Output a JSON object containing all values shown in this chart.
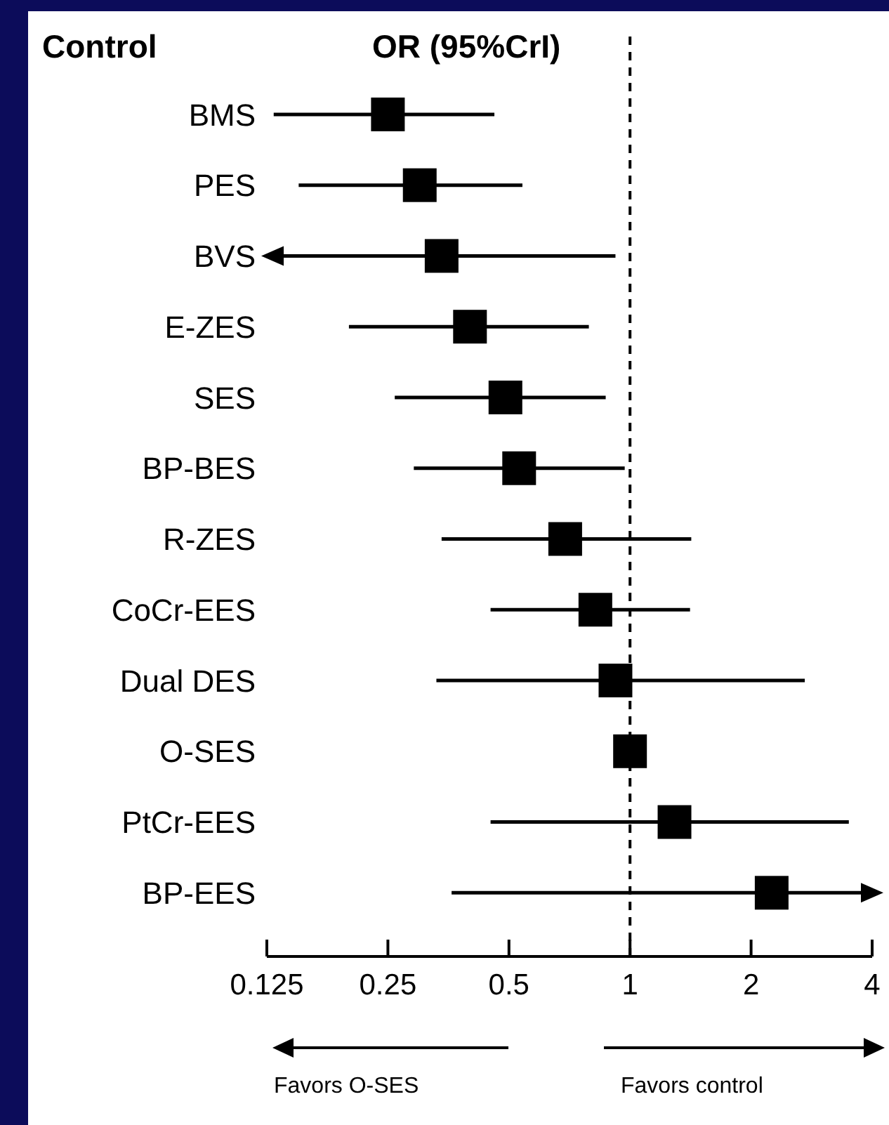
{
  "chart_data": {
    "type": "scatter",
    "title": "OR (95%CrI)",
    "ylabel": "Control",
    "categories": [
      "BMS",
      "PES",
      "BVS",
      "E-ZES",
      "SES",
      "BP-BES",
      "R-ZES",
      "CoCr-EES",
      "Dual DES",
      "O-SES",
      "PtCr-EES",
      "BP-EES"
    ],
    "series": [
      {
        "color": "#000000",
        "values": [
          0.25,
          0.3,
          0.34,
          0.4,
          0.49,
          0.53,
          0.69,
          0.82,
          0.92,
          1,
          1.29,
          2.25
        ],
        "errors": [
          [
            0.13,
            0.46
          ],
          [
            0.15,
            0.54
          ],
          [
            0.125,
            0.92
          ],
          [
            0.2,
            0.79
          ],
          [
            0.26,
            0.87
          ],
          [
            0.29,
            0.97
          ],
          [
            0.34,
            1.42
          ],
          [
            0.45,
            1.41
          ],
          [
            0.33,
            2.72
          ],
          null,
          [
            0.45,
            3.5
          ],
          [
            0.36,
            4
          ]
        ]
      }
    ],
    "orientation": "horizontal",
    "log": "x",
    "xlim": [
      0.125,
      4
    ],
    "xticks": [
      0.125,
      0.25,
      0.5,
      1,
      2,
      4
    ],
    "marker": "square",
    "ref_lines": [
      {
        "axis": "x",
        "value": 1,
        "line_style": "dashed",
        "color": "#000000"
      }
    ],
    "annotations": [
      "Favors O-SES",
      "Favors control"
    ]
  }
}
